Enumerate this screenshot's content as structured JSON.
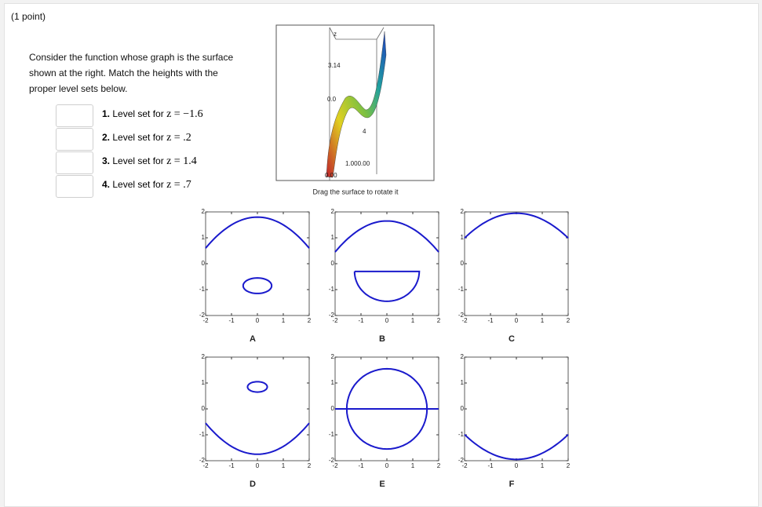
{
  "points": "(1 point)",
  "prompt": [
    "Consider the function whose graph is the surface",
    "shown at the right. Match the heights with the",
    "proper level sets below."
  ],
  "items": [
    {
      "number": "1.",
      "text": "Level set for",
      "math": "z = −1.6"
    },
    {
      "number": "2.",
      "text": "Level set for",
      "math": "z = .2"
    },
    {
      "number": "3.",
      "text": "Level set for",
      "math": "z = 1.4"
    },
    {
      "number": "4.",
      "text": "Level set for",
      "math": "z = .7"
    }
  ],
  "surface": {
    "labels": [
      "z",
      "3.14",
      "0.0",
      "4",
      "1.000.00",
      "0.00"
    ],
    "caption": "Drag the surface to rotate it"
  },
  "plots": [
    {
      "label": "A",
      "xlim": [
        -2,
        2
      ],
      "ylim": [
        -2,
        2
      ],
      "xticks": [
        -2,
        -1,
        0,
        1,
        2
      ],
      "yticks": [
        -2,
        -1,
        0,
        1,
        2
      ]
    },
    {
      "label": "B",
      "xlim": [
        -2,
        2
      ],
      "ylim": [
        -2,
        2
      ],
      "xticks": [
        -2,
        -1,
        0,
        1,
        2
      ],
      "yticks": [
        -2,
        -1,
        0,
        1,
        2
      ]
    },
    {
      "label": "C",
      "xlim": [
        -2,
        2
      ],
      "ylim": [
        -2,
        2
      ],
      "xticks": [
        -2,
        -1,
        0,
        1,
        2
      ],
      "yticks": [
        -2,
        -1,
        0,
        1,
        2
      ]
    },
    {
      "label": "D",
      "xlim": [
        -2,
        2
      ],
      "ylim": [
        -2,
        2
      ],
      "xticks": [
        -2,
        -1,
        0,
        1,
        2
      ],
      "yticks": [
        -2,
        -1,
        0,
        1,
        2
      ]
    },
    {
      "label": "E",
      "xlim": [
        -2,
        2
      ],
      "ylim": [
        -2,
        2
      ],
      "xticks": [
        -2,
        -1,
        0,
        1,
        2
      ],
      "yticks": [
        -2,
        -1,
        0,
        1,
        2
      ]
    },
    {
      "label": "F",
      "xlim": [
        -2,
        2
      ],
      "ylim": [
        -2,
        2
      ],
      "xticks": [
        -2,
        -1,
        0,
        1,
        2
      ],
      "yticks": [
        -2,
        -1,
        0,
        1,
        2
      ]
    }
  ]
}
